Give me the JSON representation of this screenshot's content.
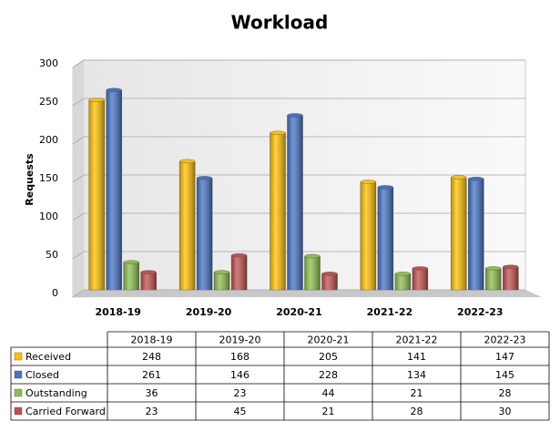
{
  "chart_data": {
    "type": "bar",
    "title": "Workload",
    "y_label": "Requests",
    "categories": [
      "2018-19",
      "2019-20",
      "2020-21",
      "2021-22",
      "2022-23"
    ],
    "series": [
      {
        "name": "Received",
        "color": "#ffc000",
        "values": [
          248,
          168,
          205,
          141,
          147
        ]
      },
      {
        "name": "Closed",
        "color": "#4472c4",
        "values": [
          261,
          146,
          228,
          134,
          145
        ]
      },
      {
        "name": "Outstanding",
        "color": "#8cbf4a",
        "values": [
          36,
          23,
          44,
          21,
          28
        ]
      },
      {
        "name": "Carried Forward",
        "color": "#c0504d",
        "values": [
          23,
          45,
          21,
          28,
          30
        ]
      }
    ],
    "ylim": [
      0,
      300
    ],
    "yticks": [
      0,
      50,
      100,
      150,
      200,
      250,
      300
    ],
    "grid": true,
    "data_table": true
  }
}
